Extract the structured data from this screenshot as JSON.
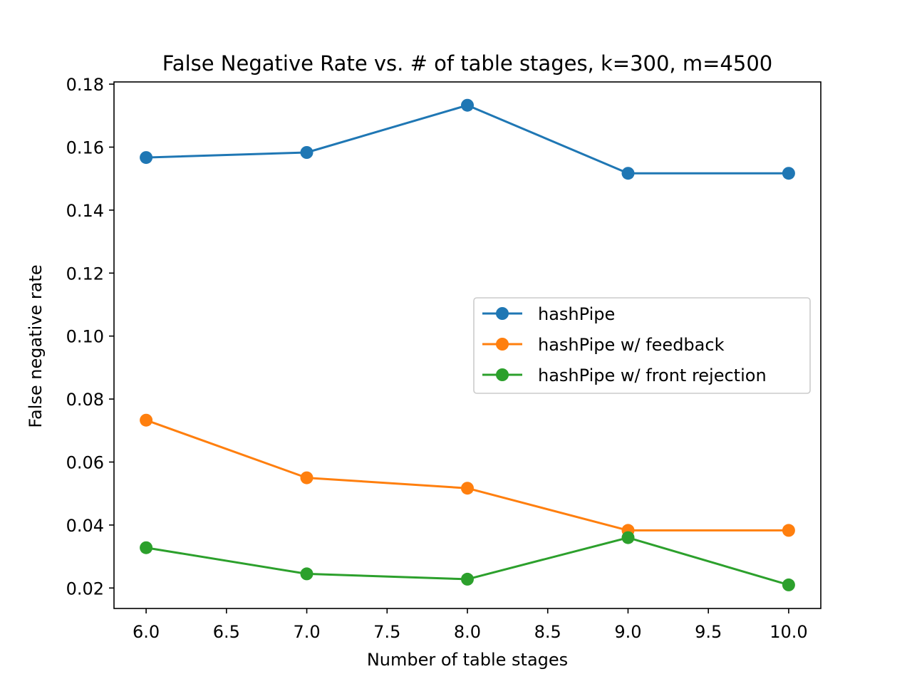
{
  "chart_data": {
    "type": "line",
    "title": "False Negative Rate vs. # of table stages, k=300, m=4500",
    "xlabel": "Number of table stages",
    "ylabel": "False negative rate",
    "x": [
      6.0,
      7.0,
      8.0,
      9.0,
      10.0
    ],
    "xlim": [
      5.8,
      10.2
    ],
    "ylim": [
      0.0135,
      0.1807
    ],
    "xticks": [
      "6.0",
      "6.5",
      "7.0",
      "7.5",
      "8.0",
      "8.5",
      "9.0",
      "9.5",
      "10.0"
    ],
    "yticks": [
      "0.02",
      "0.04",
      "0.06",
      "0.08",
      "0.10",
      "0.12",
      "0.14",
      "0.16",
      "0.18"
    ],
    "grid": false,
    "legend_position": "center-right",
    "markers": "circle",
    "series": [
      {
        "name": "hashPipe",
        "color": "#1f77b4",
        "values": [
          0.1567,
          0.1583,
          0.1733,
          0.1517,
          0.1517
        ]
      },
      {
        "name": "hashPipe w/ feedback",
        "color": "#ff7f0e",
        "values": [
          0.0733,
          0.055,
          0.0517,
          0.0383,
          0.0383
        ]
      },
      {
        "name": "hashPipe w/ front rejection",
        "color": "#2ca02c",
        "values": [
          0.0328,
          0.0245,
          0.0228,
          0.036,
          0.021
        ]
      }
    ]
  }
}
